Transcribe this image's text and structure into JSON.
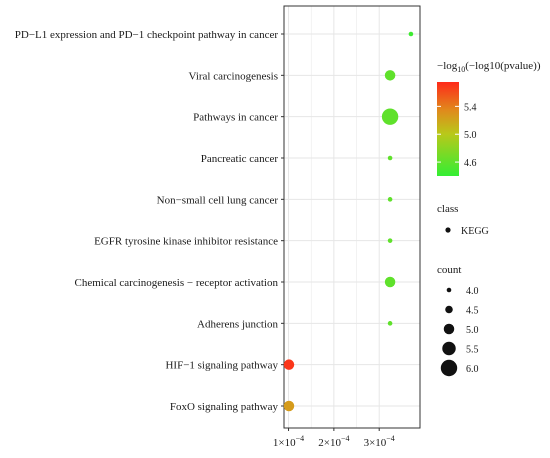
{
  "chart_data": {
    "type": "scatter",
    "title": "",
    "xlabel": "",
    "ylabel": "",
    "xlim": [
      9e-05,
      0.00039
    ],
    "x_ticks": [
      0.0001,
      0.0002,
      0.0003
    ],
    "x_tick_labels": [
      {
        "base": "1×10",
        "exp": "−4"
      },
      {
        "base": "2×10",
        "exp": "−4"
      },
      {
        "base": "3×10",
        "exp": "−4"
      }
    ],
    "grid": true,
    "categories": [
      "PD−L1 expression and PD−1 checkpoint pathway in cancer",
      "Viral carcinogenesis",
      "Pathways in cancer",
      "Pancreatic cancer",
      "Non−small cell lung cancer",
      "EGFR tyrosine kinase inhibitor resistance",
      "Chemical carcinogenesis − receptor activation",
      "Adherens junction",
      "HIF−1 signaling pathway",
      "FoxO signaling pathway"
    ],
    "points": [
      {
        "term": "PD−L1 expression and PD−1 checkpoint pathway in cancer",
        "x": 0.00037,
        "count": 4,
        "color_value": 4.45
      },
      {
        "term": "Viral carcinogenesis",
        "x": 0.000324,
        "count": 5,
        "color_value": 4.6
      },
      {
        "term": "Pathways in cancer",
        "x": 0.000324,
        "count": 6,
        "color_value": 4.6
      },
      {
        "term": "Pancreatic cancer",
        "x": 0.000324,
        "count": 4,
        "color_value": 4.6
      },
      {
        "term": "Non−small cell lung cancer",
        "x": 0.000324,
        "count": 4,
        "color_value": 4.6
      },
      {
        "term": "EGFR tyrosine kinase inhibitor resistance",
        "x": 0.000324,
        "count": 4,
        "color_value": 4.6
      },
      {
        "term": "Chemical carcinogenesis − receptor activation",
        "x": 0.000324,
        "count": 5,
        "color_value": 4.6
      },
      {
        "term": "Adherens junction",
        "x": 0.000324,
        "count": 4,
        "color_value": 4.6
      },
      {
        "term": "HIF−1 signaling pathway",
        "x": 0.000101,
        "count": 5,
        "color_value": 5.7
      },
      {
        "term": "FoxO signaling pathway",
        "x": 0.000101,
        "count": 5,
        "color_value": 5.25
      }
    ],
    "color_legend": {
      "title_prefix": "−log",
      "title_sub": "10",
      "title_suffix": "(−log10(pvalue))",
      "ticks": [
        4.6,
        5.0,
        5.4
      ],
      "tick_labels": [
        "4.6",
        "5.0",
        "5.4"
      ],
      "range": [
        4.4,
        5.75
      ],
      "low_color": "#33ee33",
      "high_color": "#ff2a1a"
    },
    "class_legend": {
      "title": "class",
      "items": [
        "KEGG"
      ]
    },
    "size_legend": {
      "title": "count",
      "values": [
        4.0,
        4.5,
        5.0,
        5.5,
        6.0
      ],
      "labels": [
        "4.0",
        "4.5",
        "5.0",
        "5.5",
        "6.0"
      ],
      "range": [
        4,
        6
      ]
    },
    "panel_background": "#ffffff",
    "grid_color": "#e6e6e6",
    "panel_border_color": "#333333"
  }
}
